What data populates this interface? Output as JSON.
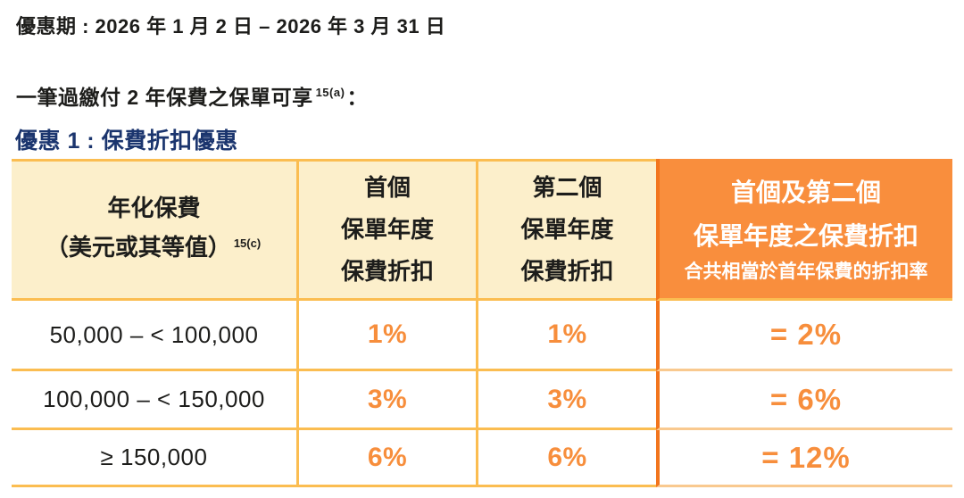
{
  "page": {
    "promo_period": "優惠期 : 2026 年 1 月 2 日 – 2026 年 3 月 31 日",
    "eligibility": {
      "text": "一筆過繳付 2 年保費之保單可享",
      "footnote": "15(a)",
      "suffix": "："
    },
    "offer_heading": "優惠 1 : 保費折扣優惠"
  },
  "table": {
    "header": {
      "annualized_premium": {
        "line1": "年化保費",
        "line2": "（美元或其等值）",
        "footnote": "15(c)"
      },
      "first_year": {
        "lines": [
          "首個",
          "保單年度",
          "保費折扣"
        ]
      },
      "second_year": {
        "lines": [
          "第二個",
          "保單年度",
          "保費折扣"
        ]
      },
      "combined": {
        "line1": "首個及第二個",
        "line2": "保單年度之保費折扣",
        "subtitle": "合共相當於首年保費的折扣率"
      }
    },
    "rows": [
      {
        "premium_band": "50,000 – < 100,000",
        "first_year_discount": "1%",
        "second_year_discount": "1%",
        "combined_discount": "= 2%"
      },
      {
        "premium_band": "100,000 – < 150,000",
        "first_year_discount": "3%",
        "second_year_discount": "3%",
        "combined_discount": "= 6%"
      },
      {
        "premium_band": "≥ 150,000",
        "first_year_discount": "6%",
        "second_year_discount": "6%",
        "combined_discount": "= 12%"
      }
    ]
  },
  "colors": {
    "heading_navy": "#1B356E",
    "cream_fill": "#FCEFCB",
    "orange_fill": "#F98E3D",
    "orange_text": "#F78E3C",
    "golden_border": "#FBBD51",
    "divider_orange": "#F2751D",
    "body_text": "#1D1D1B"
  }
}
